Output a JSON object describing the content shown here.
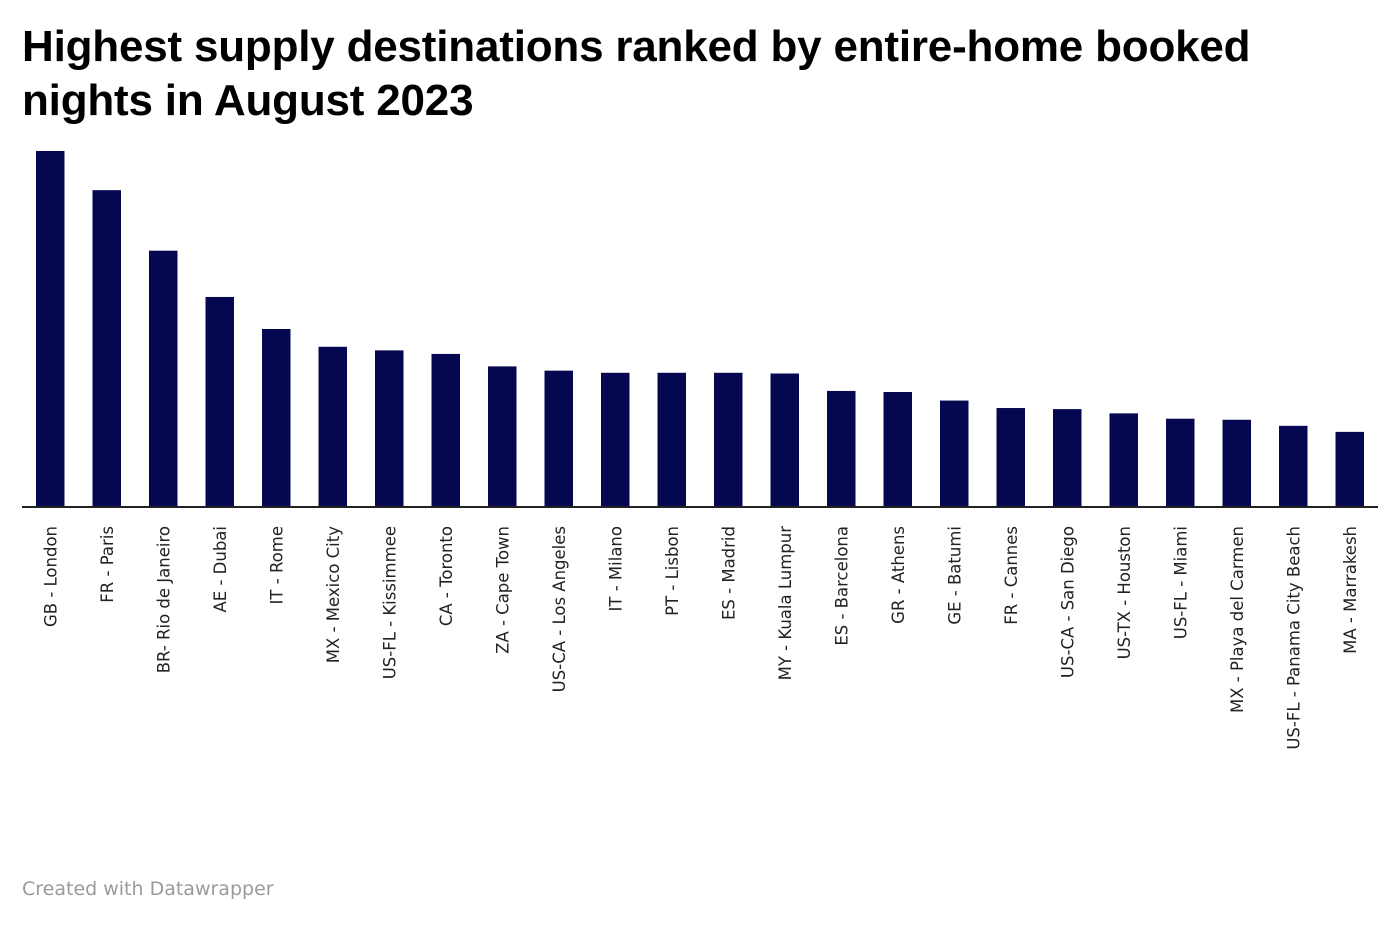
{
  "chart_data": {
    "type": "bar",
    "title": "Highest supply destinations ranked by entire-home booked nights in August 2023",
    "xlabel": "",
    "ylabel": "",
    "categories": [
      "GB - London",
      "FR - Paris",
      "BR- Rio de Janeiro",
      "AE - Dubai",
      "IT - Rome",
      "MX - Mexico City",
      "US-FL - Kissimmee",
      "CA - Toronto",
      "ZA - Cape Town",
      "US-CA - Los Angeles",
      "IT - Milano",
      "PT - Lisbon",
      "ES - Madrid",
      "MY - Kuala Lumpur",
      "ES - Barcelona",
      "GR - Athens",
      "GE - Batumi",
      "FR - Cannes",
      "US-CA - San Diego",
      "US-TX - Houston",
      "US-FL - Miami",
      "MX - Playa del Carmen",
      "US-FL - Panama City Beach",
      "MA - Marrakesh"
    ],
    "values": [
      100,
      89,
      72,
      59,
      50,
      45,
      44,
      43,
      39.5,
      38.3,
      37.7,
      37.7,
      37.7,
      37.5,
      32.6,
      32.3,
      29.9,
      27.8,
      27.5,
      26.3,
      24.8,
      24.5,
      22.8,
      21.1
    ],
    "ylim": [
      0,
      100
    ],
    "grid": false,
    "axis_values_shown": false,
    "bar_color": "#050850",
    "baseline_color": "#222222"
  },
  "footer": {
    "credit": "Created with Datawrapper"
  }
}
